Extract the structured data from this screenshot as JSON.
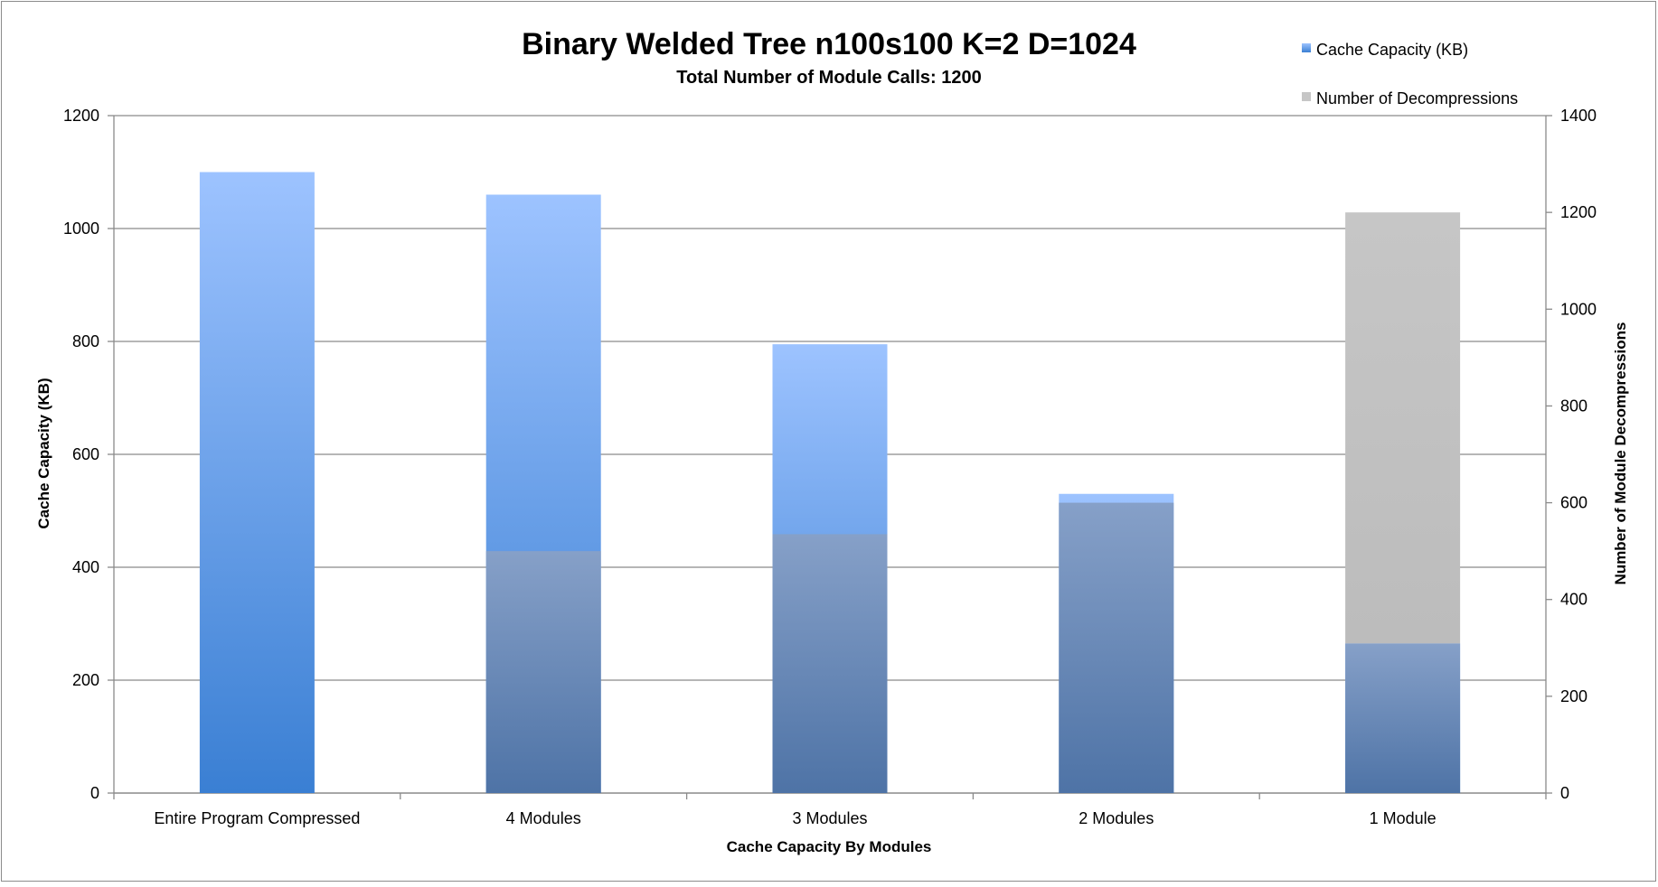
{
  "chart_data": {
    "type": "bar",
    "title": "Binary Welded Tree n100s100 K=2 D=1024",
    "subtitle": "Total Number of Module Calls: 1200",
    "xlabel": "Cache Capacity By Modules",
    "ylabel_left": "Cache Capacity (KB)",
    "ylabel_right": "Number of Module Decompressions",
    "categories": [
      "Entire Program Compressed",
      "4 Modules",
      "3 Modules",
      "2 Modules",
      "1 Module"
    ],
    "series": [
      {
        "name": "Cache Capacity (KB)",
        "axis": "left",
        "color": "#4a8ee0",
        "values": [
          1100,
          1060,
          795,
          530,
          265
        ]
      },
      {
        "name": "Number of Decompressions",
        "axis": "right",
        "color": "#c4c4c4",
        "values": [
          0,
          500,
          535,
          600,
          1200
        ]
      }
    ],
    "ylim_left": [
      0,
      1200
    ],
    "yticks_left": [
      0,
      200,
      400,
      600,
      800,
      1000,
      1200
    ],
    "ylim_right": [
      0,
      1400
    ],
    "yticks_right": [
      0,
      200,
      400,
      600,
      800,
      1000,
      1200,
      1400
    ],
    "grid": true,
    "legend_position": "top-right"
  }
}
